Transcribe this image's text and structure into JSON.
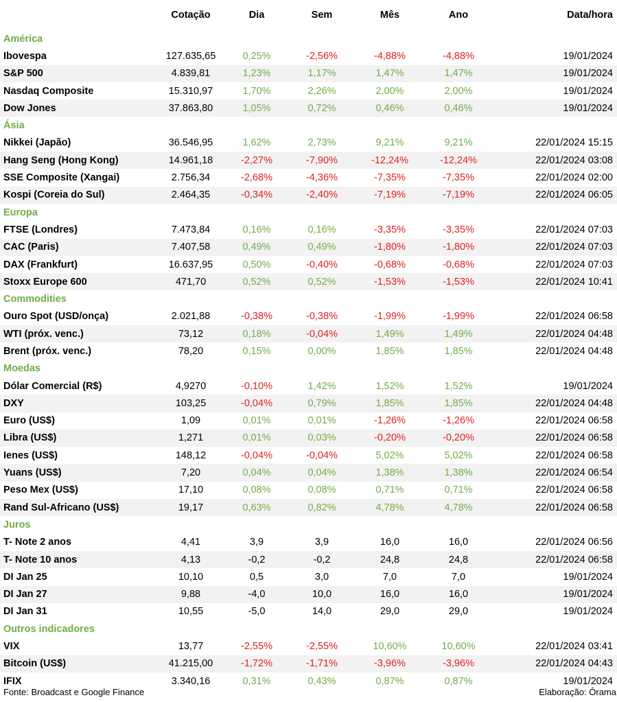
{
  "header": {
    "name": "",
    "cotacao": "Cotação",
    "dia": "Dia",
    "sem": "Sem",
    "mes": "Mês",
    "ano": "Ano",
    "data": "Data/hora"
  },
  "sections": [
    {
      "title": "América",
      "rows": [
        {
          "name": "Ibovespa",
          "cotacao": "127.635,65",
          "dia": "0,25%",
          "sem": "-2,56%",
          "mes": "-4,88%",
          "ano": "-4,88%",
          "data": "19/01/2024",
          "colors": [
            "pos",
            "neg",
            "neg",
            "neg"
          ]
        },
        {
          "name": "S&P 500",
          "cotacao": "4.839,81",
          "dia": "1,23%",
          "sem": "1,17%",
          "mes": "1,47%",
          "ano": "1,47%",
          "data": "19/01/2024",
          "colors": [
            "pos",
            "pos",
            "pos",
            "pos"
          ]
        },
        {
          "name": "Nasdaq Composite",
          "cotacao": "15.310,97",
          "dia": "1,70%",
          "sem": "2,26%",
          "mes": "2,00%",
          "ano": "2,00%",
          "data": "19/01/2024",
          "colors": [
            "pos",
            "pos",
            "pos",
            "pos"
          ]
        },
        {
          "name": "Dow Jones",
          "cotacao": "37.863,80",
          "dia": "1,05%",
          "sem": "0,72%",
          "mes": "0,46%",
          "ano": "0,46%",
          "data": "19/01/2024",
          "colors": [
            "pos",
            "pos",
            "pos",
            "pos"
          ]
        }
      ]
    },
    {
      "title": "Ásia",
      "rows": [
        {
          "name": "Nikkei (Japão)",
          "cotacao": "36.546,95",
          "dia": "1,62%",
          "sem": "2,73%",
          "mes": "9,21%",
          "ano": "9,21%",
          "data": "22/01/2024 15:15",
          "colors": [
            "pos",
            "pos",
            "pos",
            "pos"
          ]
        },
        {
          "name": "Hang Seng (Hong Kong)",
          "cotacao": "14.961,18",
          "dia": "-2,27%",
          "sem": "-7,90%",
          "mes": "-12,24%",
          "ano": "-12,24%",
          "data": "22/01/2024 03:08",
          "colors": [
            "neg",
            "neg",
            "neg",
            "neg"
          ]
        },
        {
          "name": "SSE Composite (Xangai)",
          "cotacao": "2.756,34",
          "dia": "-2,68%",
          "sem": "-4,36%",
          "mes": "-7,35%",
          "ano": "-7,35%",
          "data": "22/01/2024 02:00",
          "colors": [
            "neg",
            "neg",
            "neg",
            "neg"
          ]
        },
        {
          "name": "Kospi (Coreia do Sul)",
          "cotacao": "2.464,35",
          "dia": "-0,34%",
          "sem": "-2,40%",
          "mes": "-7,19%",
          "ano": "-7,19%",
          "data": "22/01/2024 06:05",
          "colors": [
            "neg",
            "neg",
            "neg",
            "neg"
          ]
        }
      ]
    },
    {
      "title": "Europa",
      "rows": [
        {
          "name": "FTSE (Londres)",
          "cotacao": "7.473,84",
          "dia": "0,16%",
          "sem": "0,16%",
          "mes": "-3,35%",
          "ano": "-3,35%",
          "data": "22/01/2024 07:03",
          "colors": [
            "pos",
            "pos",
            "neg",
            "neg"
          ]
        },
        {
          "name": "CAC (Paris)",
          "cotacao": "7.407,58",
          "dia": "0,49%",
          "sem": "0,49%",
          "mes": "-1,80%",
          "ano": "-1,80%",
          "data": "22/01/2024 07:03",
          "colors": [
            "pos",
            "pos",
            "neg",
            "neg"
          ]
        },
        {
          "name": "DAX (Frankfurt)",
          "cotacao": "16.637,95",
          "dia": "0,50%",
          "sem": "-0,40%",
          "mes": "-0,68%",
          "ano": "-0,68%",
          "data": "22/01/2024 07:03",
          "colors": [
            "pos",
            "neg",
            "neg",
            "neg"
          ]
        },
        {
          "name": "Stoxx Europe 600",
          "cotacao": "471,70",
          "dia": "0,52%",
          "sem": "0,52%",
          "mes": "-1,53%",
          "ano": "-1,53%",
          "data": "22/01/2024 10:41",
          "colors": [
            "pos",
            "pos",
            "neg",
            "neg"
          ]
        }
      ]
    },
    {
      "title": "Commodities",
      "rows": [
        {
          "name": "Ouro Spot (USD/onça)",
          "cotacao": "2.021,88",
          "dia": "-0,38%",
          "sem": "-0,38%",
          "mes": "-1,99%",
          "ano": "-1,99%",
          "data": "22/01/2024 06:58",
          "colors": [
            "neg",
            "neg",
            "neg",
            "neg"
          ]
        },
        {
          "name": "WTI (próx. venc.)",
          "cotacao": "73,12",
          "dia": "0,18%",
          "sem": "-0,04%",
          "mes": "1,49%",
          "ano": "1,49%",
          "data": "22/01/2024 04:48",
          "colors": [
            "pos",
            "neg",
            "pos",
            "pos"
          ]
        },
        {
          "name": "Brent (próx. venc.)",
          "cotacao": "78,20",
          "dia": "0,15%",
          "sem": "0,00%",
          "mes": "1,85%",
          "ano": "1,85%",
          "data": "22/01/2024 04:48",
          "colors": [
            "pos",
            "pos",
            "pos",
            "pos"
          ]
        }
      ]
    },
    {
      "title": "Moedas",
      "rows": [
        {
          "name": "Dólar Comercial (R$)",
          "cotacao": "4,9270",
          "dia": "-0,10%",
          "sem": "1,42%",
          "mes": "1,52%",
          "ano": "1,52%",
          "data": "19/01/2024",
          "colors": [
            "neg",
            "pos",
            "pos",
            "pos"
          ]
        },
        {
          "name": "DXY",
          "cotacao": "103,25",
          "dia": "-0,04%",
          "sem": "0,79%",
          "mes": "1,85%",
          "ano": "1,85%",
          "data": "22/01/2024 04:48",
          "colors": [
            "neg",
            "pos",
            "pos",
            "pos"
          ]
        },
        {
          "name": "Euro (US$)",
          "cotacao": "1,09",
          "dia": "0,01%",
          "sem": "0,01%",
          "mes": "-1,26%",
          "ano": "-1,26%",
          "data": "22/01/2024 06:58",
          "colors": [
            "pos",
            "pos",
            "neg",
            "neg"
          ]
        },
        {
          "name": "Libra (US$)",
          "cotacao": "1,271",
          "dia": "0,01%",
          "sem": "0,03%",
          "mes": "-0,20%",
          "ano": "-0,20%",
          "data": "22/01/2024 06:58",
          "colors": [
            "pos",
            "pos",
            "neg",
            "neg"
          ]
        },
        {
          "name": "Ienes (US$)",
          "cotacao": "148,12",
          "dia": "-0,04%",
          "sem": "-0,04%",
          "mes": "5,02%",
          "ano": "5,02%",
          "data": "22/01/2024 06:58",
          "colors": [
            "neg",
            "neg",
            "pos",
            "pos"
          ]
        },
        {
          "name": "Yuans (US$)",
          "cotacao": "7,20",
          "dia": "0,04%",
          "sem": "0,04%",
          "mes": "1,38%",
          "ano": "1,38%",
          "data": "22/01/2024 06:54",
          "colors": [
            "pos",
            "pos",
            "pos",
            "pos"
          ]
        },
        {
          "name": "Peso Mex (US$)",
          "cotacao": "17,10",
          "dia": "0,08%",
          "sem": "0,08%",
          "mes": "0,71%",
          "ano": "0,71%",
          "data": "22/01/2024 06:58",
          "colors": [
            "pos",
            "pos",
            "pos",
            "pos"
          ]
        },
        {
          "name": "Rand Sul-Africano (US$)",
          "cotacao": "19,17",
          "dia": "0,63%",
          "sem": "0,82%",
          "mes": "4,78%",
          "ano": "4,78%",
          "data": "22/01/2024 06:58",
          "colors": [
            "pos",
            "pos",
            "pos",
            "pos"
          ]
        }
      ]
    },
    {
      "title": "Juros",
      "rows": [
        {
          "name": "T- Note 2 anos",
          "cotacao": "4,41",
          "dia": "3,9",
          "sem": "3,9",
          "mes": "16,0",
          "ano": "16,0",
          "data": "22/01/2024 06:56",
          "colors": [
            "plain",
            "plain",
            "plain",
            "plain"
          ]
        },
        {
          "name": "T- Note 10 anos",
          "cotacao": "4,13",
          "dia": "-0,2",
          "sem": "-0,2",
          "mes": "24,8",
          "ano": "24,8",
          "data": "22/01/2024 06:58",
          "colors": [
            "plain",
            "plain",
            "plain",
            "plain"
          ]
        },
        {
          "name": "DI Jan 25",
          "cotacao": "10,10",
          "dia": "0,5",
          "sem": "3,0",
          "mes": "7,0",
          "ano": "7,0",
          "data": "19/01/2024",
          "colors": [
            "plain",
            "plain",
            "plain",
            "plain"
          ]
        },
        {
          "name": "DI Jan 27",
          "cotacao": "9,88",
          "dia": "-4,0",
          "sem": "10,0",
          "mes": "16,0",
          "ano": "16,0",
          "data": "19/01/2024",
          "colors": [
            "plain",
            "plain",
            "plain",
            "plain"
          ]
        },
        {
          "name": "DI Jan 31",
          "cotacao": "10,55",
          "dia": "-5,0",
          "sem": "14,0",
          "mes": "29,0",
          "ano": "29,0",
          "data": "19/01/2024",
          "colors": [
            "plain",
            "plain",
            "plain",
            "plain"
          ]
        }
      ]
    },
    {
      "title": "Outros indicadores",
      "rows": [
        {
          "name": "VIX",
          "cotacao": "13,77",
          "dia": "-2,55%",
          "sem": "-2,55%",
          "mes": "10,60%",
          "ano": "10,60%",
          "data": "22/01/2024 03:41",
          "colors": [
            "neg",
            "neg",
            "pos",
            "pos"
          ]
        },
        {
          "name": "Bitcoin (US$)",
          "cotacao": "41.215,00",
          "dia": "-1,72%",
          "sem": "-1,71%",
          "mes": "-3,96%",
          "ano": "-3,96%",
          "data": "22/01/2024 04:43",
          "colors": [
            "neg",
            "neg",
            "neg",
            "neg"
          ]
        },
        {
          "name": "IFIX",
          "cotacao": "3.340,16",
          "dia": "0,31%",
          "sem": "0,43%",
          "mes": "0,87%",
          "ano": "0,87%",
          "data": "19/01/2024",
          "colors": [
            "pos",
            "pos",
            "pos",
            "pos"
          ]
        }
      ]
    }
  ],
  "footer": {
    "source": "Fonte: Broadcast e Google Finance",
    "credit": "Elaboração: Órama"
  },
  "colors": {
    "pos": "#70ad47",
    "neg": "#e02020",
    "section": "#70ad47",
    "alt_row": "#f2f2f2"
  }
}
